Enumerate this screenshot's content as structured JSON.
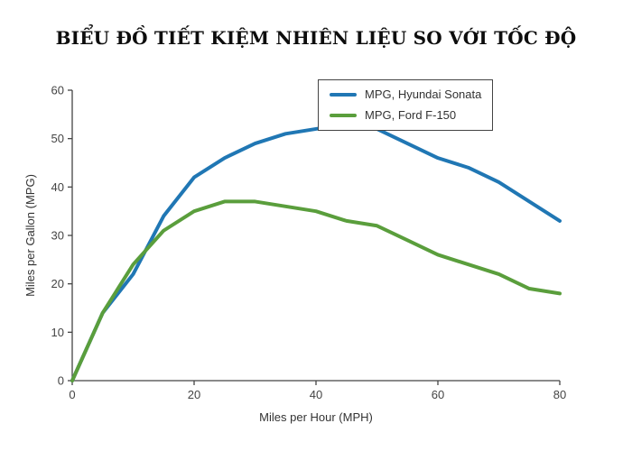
{
  "title": "BIỂU ĐỒ TIẾT KIỆM NHIÊN LIỆU SO VỚI TỐC ĐỘ",
  "chart_data": {
    "type": "line",
    "title": "BIỂU ĐỒ TIẾT KIỆM NHIÊN LIỆU SO VỚI TỐC ĐỘ",
    "xlabel": "Miles per Hour (MPH)",
    "ylabel": "Miles per Gallon (MPG)",
    "xlim": [
      0,
      80
    ],
    "ylim": [
      0,
      60
    ],
    "xticks": [
      0,
      20,
      40,
      60,
      80
    ],
    "yticks": [
      0,
      10,
      20,
      30,
      40,
      50,
      60
    ],
    "grid": false,
    "legend_position": "top-center-inside",
    "x": [
      0,
      5,
      10,
      15,
      20,
      25,
      30,
      35,
      40,
      45,
      50,
      55,
      60,
      65,
      70,
      75,
      80
    ],
    "series": [
      {
        "name": "MPG, Hyundai Sonata",
        "color": "#2077b4",
        "values": [
          0,
          14,
          22,
          34,
          42,
          46,
          49,
          51,
          52,
          53,
          52,
          49,
          46,
          44,
          41,
          37,
          33
        ]
      },
      {
        "name": "MPG, Ford F-150",
        "color": "#5a9e3c",
        "values": [
          0,
          14,
          24,
          31,
          35,
          37,
          37,
          36,
          35,
          33,
          32,
          29,
          26,
          24,
          22,
          19,
          18
        ]
      }
    ]
  }
}
